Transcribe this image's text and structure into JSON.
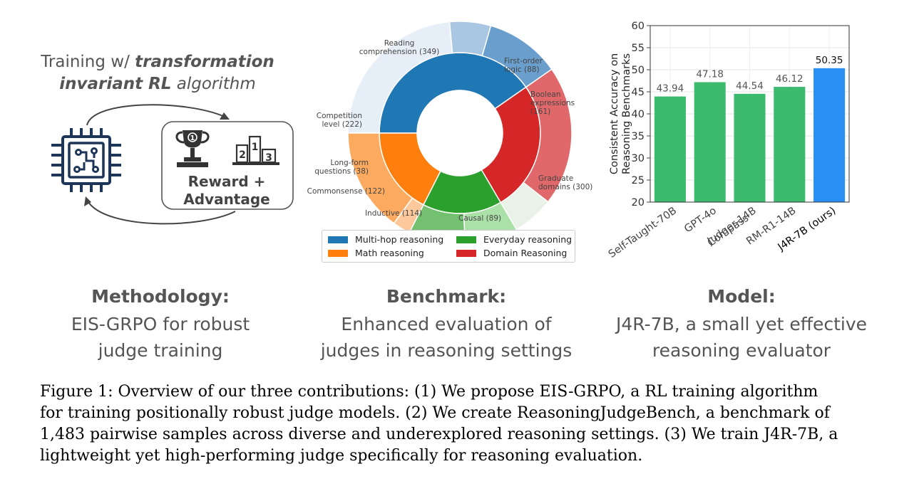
{
  "methodology": {
    "train_title_pre": "Training w/ ",
    "train_title_bold": "transformation",
    "train_title_bold2": "invariant RL",
    "train_title_post": " algorithm",
    "reward_line1": "Reward +",
    "reward_line2": "Advantage",
    "trophy_number": "1",
    "podium_numbers": [
      "2",
      "1",
      "3"
    ],
    "icons": [
      "chip-icon",
      "trophy-icon",
      "podium-icon",
      "cycle-arrow-icon"
    ],
    "section_title": "Methodology:",
    "desc_line1": "EIS-GRPO for robust",
    "desc_line2": "judge training"
  },
  "benchmark": {
    "section_title": "Benchmark:",
    "desc_line1": "Enhanced evaluation of",
    "desc_line2": "judges in reasoning settings",
    "legend": [
      {
        "label": "Multi-hop reasoning",
        "color": "#1f77b4"
      },
      {
        "label": "Everyday reasoning",
        "color": "#2ca02c"
      },
      {
        "label": "Math reasoning",
        "color": "#ff7f0e"
      },
      {
        "label": "Domain Reasoning",
        "color": "#d62728"
      }
    ]
  },
  "model": {
    "section_title": "Model:",
    "desc_line1": "J4R-7B, a small yet effective",
    "desc_line2": "reasoning evaluator"
  },
  "chart_data": [
    {
      "type": "pie",
      "subtype": "sunburst",
      "inner_ring": [
        {
          "name": "Multi-hop reasoning",
          "value": 598,
          "color": "#1f77b4"
        },
        {
          "name": "Domain Reasoning",
          "value": 389,
          "color": "#d62728"
        },
        {
          "name": "Everyday reasoning",
          "value": 236,
          "color": "#2ca02c"
        },
        {
          "name": "Math reasoning",
          "value": 260,
          "color": "#ff7f0e"
        }
      ],
      "outer_ring": [
        {
          "label_line1": "Reading",
          "label_line2": "comprehension (349)",
          "value": 349,
          "color": "#e6eef7",
          "parent": "Multi-hop reasoning"
        },
        {
          "label_line1": "First-order",
          "label_line2": "logic (88)",
          "value": 88,
          "color": "#a9c7e2",
          "parent": "Multi-hop reasoning"
        },
        {
          "label_line1": "Boolean",
          "label_line2": "expressions",
          "label_line3": "(161)",
          "value": 161,
          "color": "#6a9fcd",
          "parent": "Multi-hop reasoning"
        },
        {
          "label_line1": "Graduate",
          "label_line2": "domains (300)",
          "value": 300,
          "color": "#e0686a",
          "parent": "Domain Reasoning"
        },
        {
          "label_line1": "Causal (89)",
          "value": 89,
          "color": "#e9f2e6",
          "parent": "Domain Reasoning"
        },
        {
          "label_line1": "Inductive (114)",
          "value": 114,
          "color": "#ace0a9",
          "parent": "Everyday reasoning"
        },
        {
          "label_line1": "Commonsense (122)",
          "value": 122,
          "color": "#73c071",
          "parent": "Everyday reasoning"
        },
        {
          "label_line1": "Long-form",
          "label_line2": "questions (38)",
          "value": 38,
          "color": "#fdc99c",
          "parent": "Math reasoning"
        },
        {
          "label_line1": "Competition",
          "label_line2": "level (222)",
          "value": 222,
          "color": "#fcaa60",
          "parent": "Math reasoning"
        }
      ]
    },
    {
      "type": "bar",
      "categories": [
        "Self-Taught-70B",
        "GPT-4o",
        "Compass Judger-14B",
        "RM-R1-14B",
        "J4R-7B (ours)"
      ],
      "category_lines": [
        [
          "Self-Taught-70B"
        ],
        [
          "GPT-4o"
        ],
        [
          "Compass",
          "Judger-14B"
        ],
        [
          "RM-R1-14B"
        ],
        [
          "J4R-7B (ours)"
        ]
      ],
      "values": [
        43.94,
        47.18,
        44.54,
        46.12,
        50.35
      ],
      "value_labels": [
        "43.94",
        "47.18",
        "44.54",
        "46.12",
        "50.35"
      ],
      "colors": [
        "#3cba6e",
        "#3cba6e",
        "#3cba6e",
        "#3cba6e",
        "#2a8ff5"
      ],
      "ylabel_line1": "Consistent Accuracy on",
      "ylabel_line2": "Reasoning Benchmarks",
      "ylim": [
        20,
        60
      ],
      "yticks": [
        20,
        25,
        30,
        35,
        40,
        45,
        50,
        55,
        60
      ],
      "grid": true
    }
  ],
  "caption": {
    "line1": "Figure 1: Overview of our three contributions: (1) We propose EIS-GRPO, a RL training algorithm",
    "line2": "for training positionally robust judge models. (2) We create ReasoningJudgeBench, a benchmark of",
    "line3": "1,483 pairwise samples across diverse and underexplored reasoning settings. (3) We train J4R-7B, a",
    "line4": "lightweight yet high-performing judge specifically for reasoning evaluation."
  }
}
